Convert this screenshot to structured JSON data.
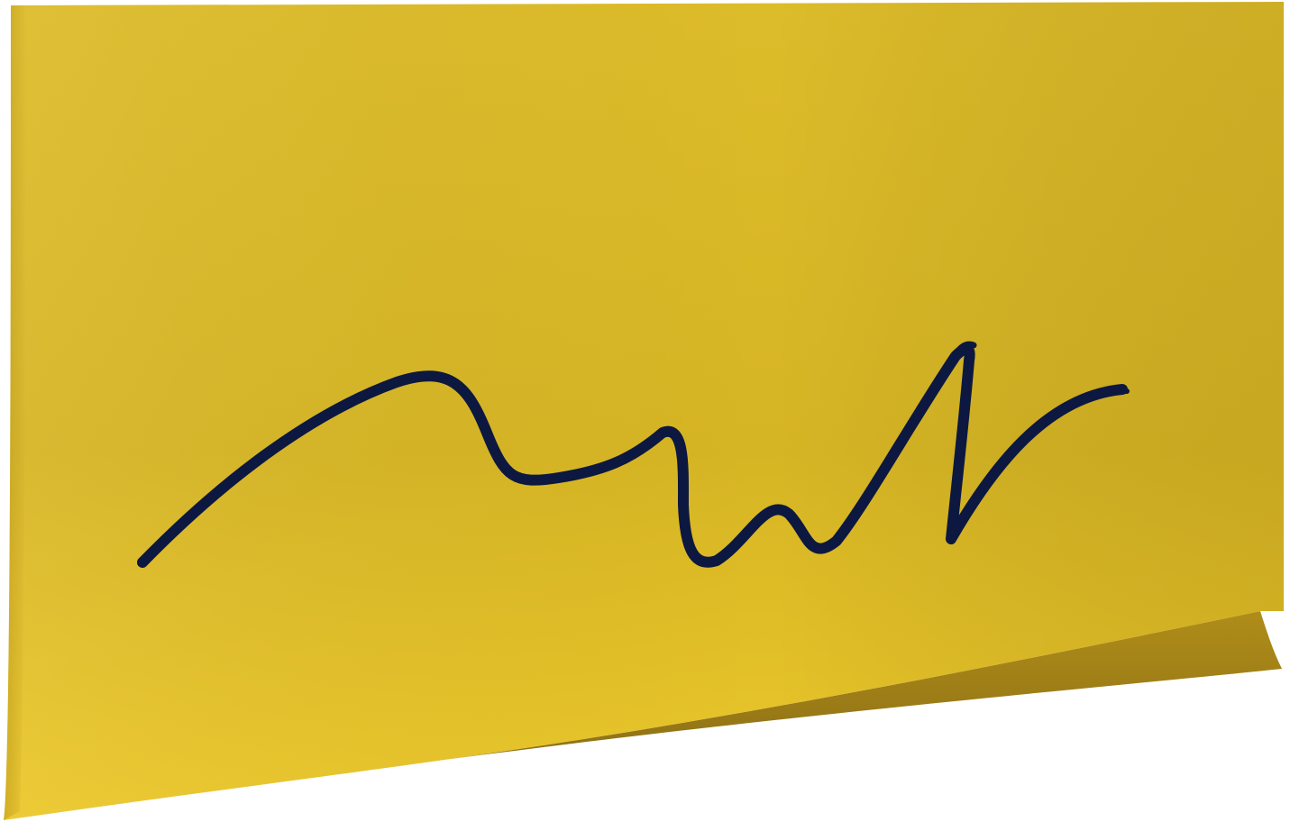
{
  "note": {
    "kind": "sticky-note",
    "colors": {
      "paper_top": "#DDBC2A",
      "paper_mid": "#D6B524",
      "paper_right": "#C9A726",
      "paper_bottom": "#ECC82B",
      "curl_light": "#B08D19",
      "curl_dark": "#8E7115",
      "background": "#FFFFFF"
    },
    "curled_corner": "bottom-right"
  },
  "scribble": {
    "kind": "handwritten-signature",
    "color": "#0C1840"
  }
}
